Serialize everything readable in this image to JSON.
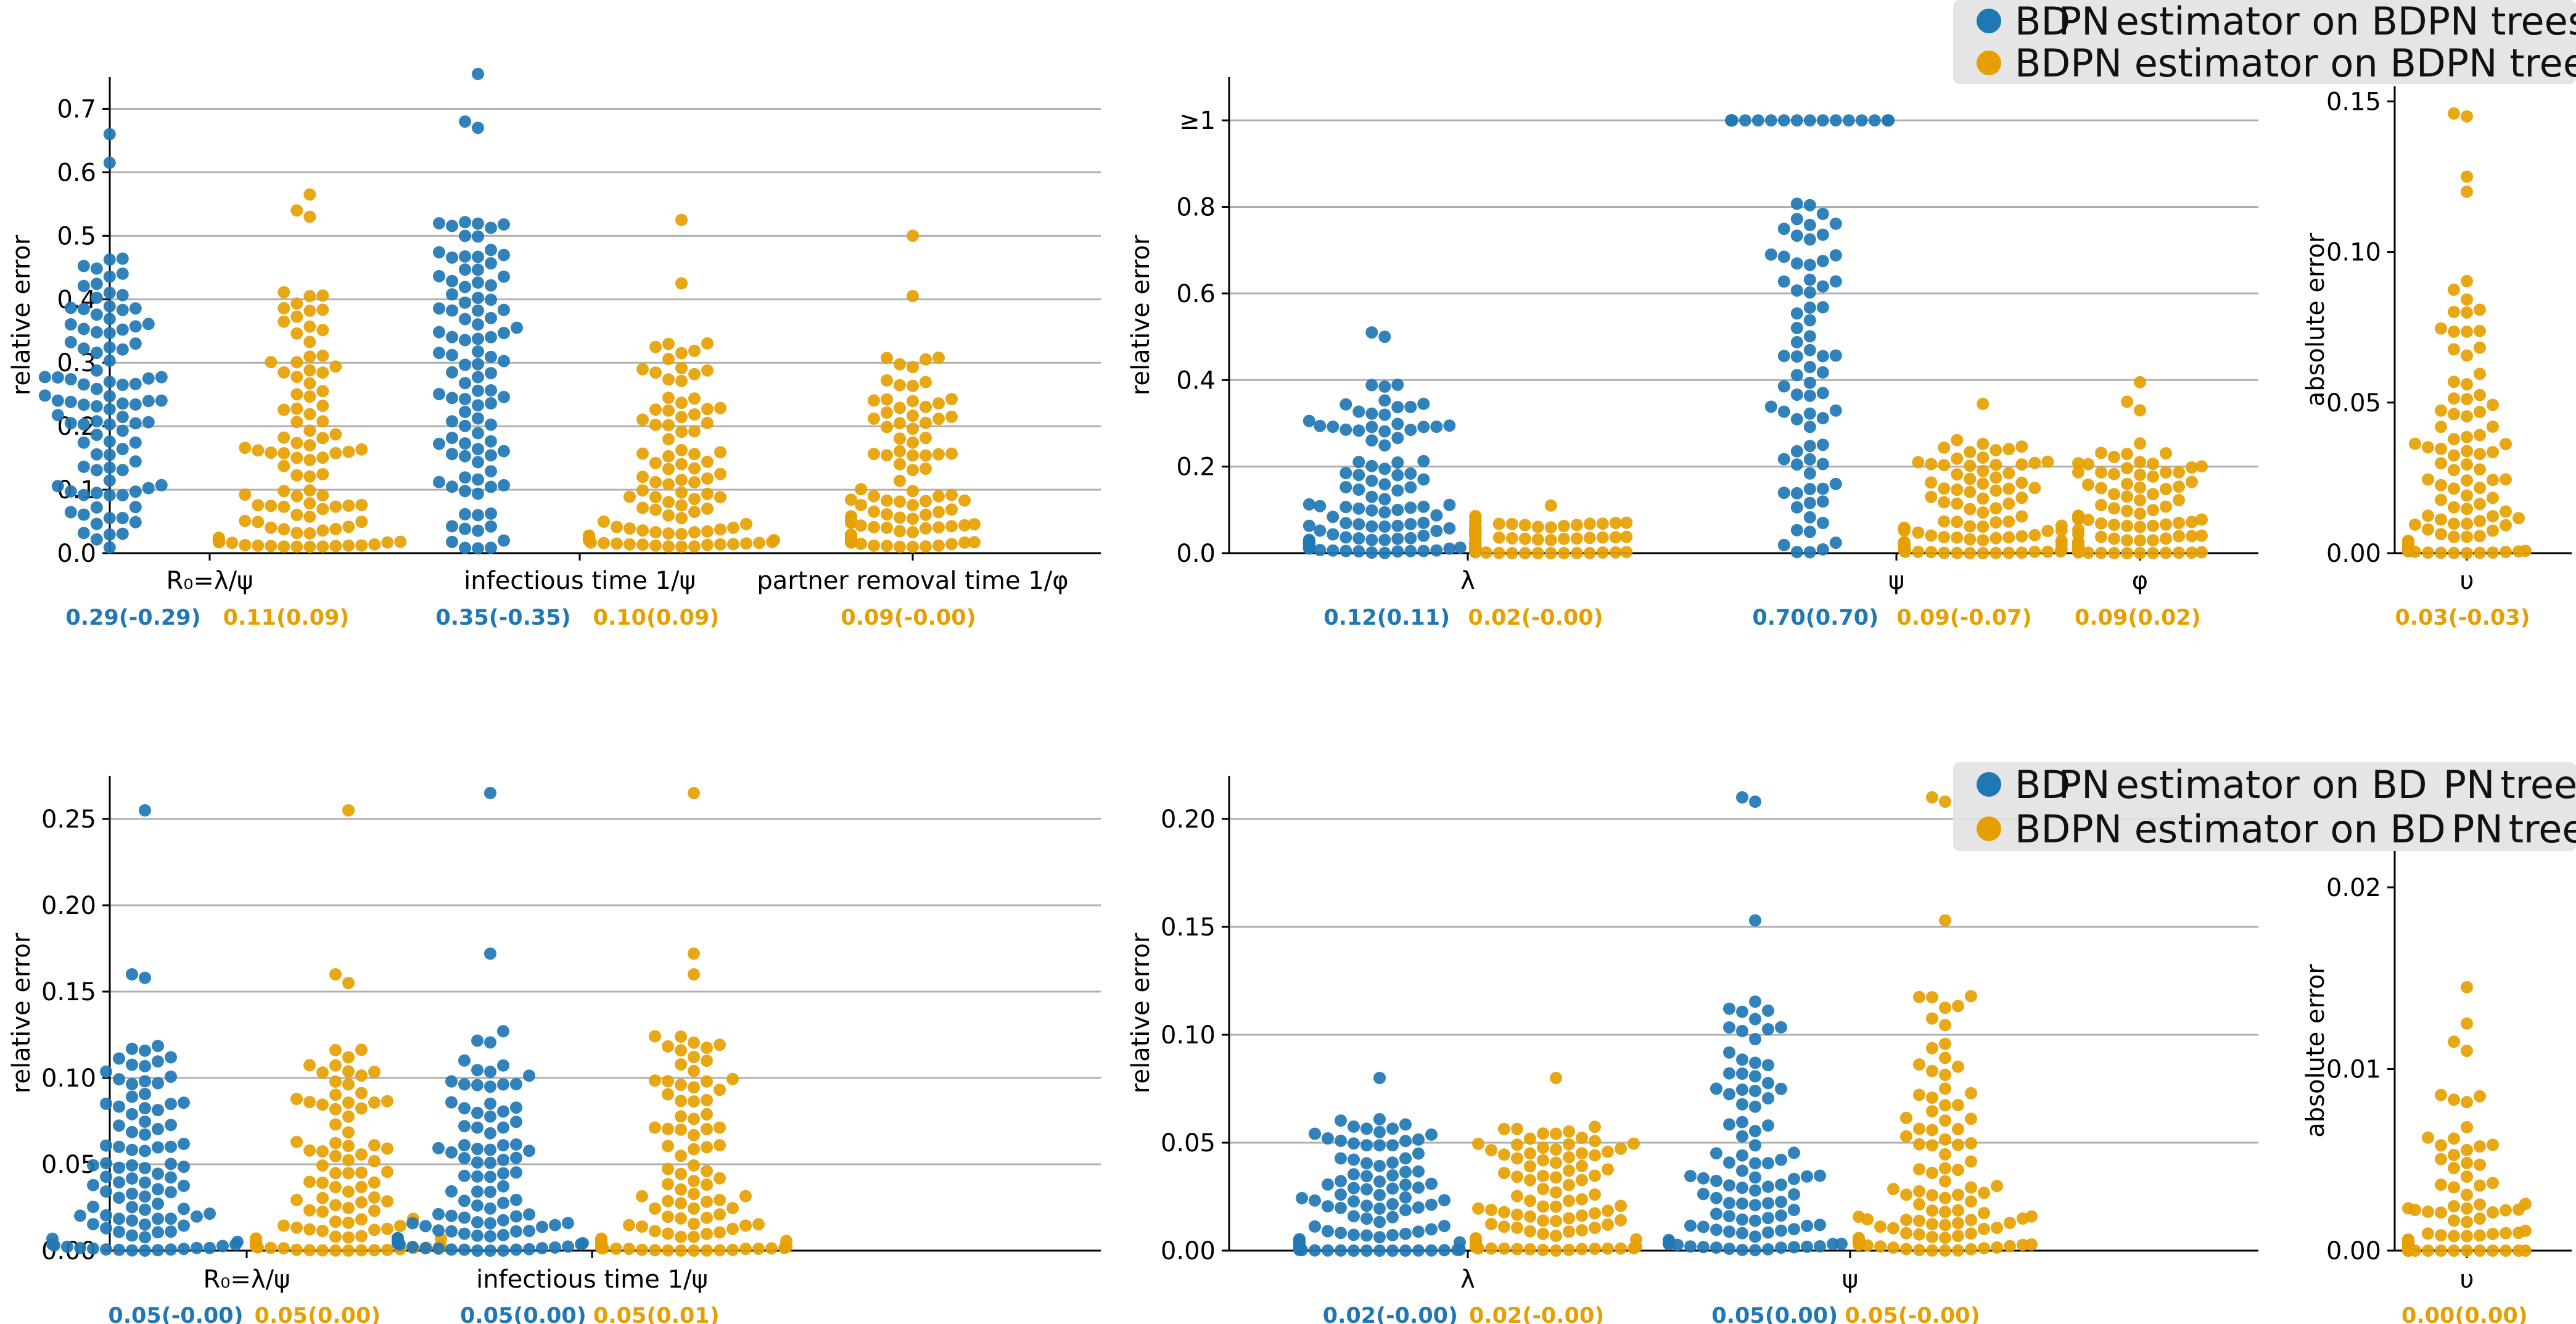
{
  "colors": {
    "bd": "#1f77b4",
    "bdpn": "#e69f00",
    "grid": "#b0b0b0",
    "axis": "#000000",
    "legend_bg": "#e2e2e2",
    "legend_mask": "#c9c9c9"
  },
  "legends": [
    {
      "entries": [
        {
          "key": "bd",
          "parts": [
            "BD",
            "PN",
            "estimator on BDPN trees"
          ],
          "mask": 1
        },
        {
          "key": "bdpn",
          "parts": [
            "BDPN estimator on BDPN trees"
          ],
          "mask": -1
        }
      ]
    },
    {
      "entries": [
        {
          "key": "bd",
          "parts": [
            "BD",
            "PN",
            "estimator on BD",
            "PN",
            "trees"
          ],
          "mask": 1
        },
        {
          "key": "bdpn",
          "parts": [
            "BDPN estimator on BD",
            "PN",
            "trees"
          ],
          "mask": 1
        }
      ]
    }
  ],
  "chart_data": [
    {
      "type": "scatter",
      "subtype": "swarm",
      "ylabel": "relative error",
      "ylim": [
        0,
        0.75
      ],
      "grid": true,
      "yticks": [
        "0.0",
        "0.1",
        "0.2",
        "0.3",
        "0.4",
        "0.5",
        "0.6",
        "0.7"
      ],
      "ytick_values": [
        0,
        0.1,
        0.2,
        0.3,
        0.4,
        0.5,
        0.6,
        0.7
      ],
      "categories": [
        "R₀=λ/ψ",
        "infectious time 1/ψ",
        "partner removal time 1/φ"
      ],
      "groups": [
        {
          "category": "R₀=λ/ψ",
          "series": [
            {
              "key": "bd",
              "stat": "0.29(-0.29)",
              "n": 100,
              "min": 0.0,
              "max": 0.66,
              "shape": "uniform",
              "outliers": [
                0.66,
                0.615
              ]
            },
            {
              "key": "bdpn",
              "stat": "0.11(0.09)",
              "n": 100,
              "min": 0.01,
              "max": 0.57,
              "shape": "decay",
              "outliers": [
                0.565,
                0.54,
                0.53
              ]
            }
          ]
        },
        {
          "category": "infectious time 1/ψ",
          "series": [
            {
              "key": "bd",
              "stat": "0.35(-0.35)",
              "n": 100,
              "min": 0.0,
              "max": 0.755,
              "shape": "uniform",
              "outliers": [
                0.755,
                0.68,
                0.67
              ]
            },
            {
              "key": "bdpn",
              "stat": "0.10(0.09)",
              "n": 100,
              "min": 0.01,
              "max": 0.53,
              "shape": "decay",
              "outliers": [
                0.525,
                0.425
              ]
            }
          ]
        },
        {
          "category": "partner removal time 1/φ",
          "series": [
            {
              "key": "bdpn",
              "stat": "0.09(-0.00)",
              "n": 100,
              "min": 0.01,
              "max": 0.5,
              "shape": "decay",
              "outliers": [
                0.5,
                0.405
              ]
            }
          ]
        }
      ]
    },
    {
      "type": "scatter",
      "subtype": "swarm",
      "ylabel": "relative error",
      "ylim": [
        0,
        1.1
      ],
      "grid": true,
      "yticks": [
        "0.0",
        "0.2",
        "0.4",
        "0.6",
        "0.8",
        "≥1"
      ],
      "ytick_values": [
        0,
        0.2,
        0.4,
        0.6,
        0.8,
        1.0
      ],
      "categories": [
        "λ",
        "ψ",
        "φ"
      ],
      "groups": [
        {
          "category": "λ",
          "series": [
            {
              "key": "bd",
              "stat": "0.12(0.11)",
              "n": 100,
              "min": 0.0,
              "max": 0.51,
              "shape": "decay",
              "outliers": [
                0.51,
                0.5
              ]
            },
            {
              "key": "bdpn",
              "stat": "0.02(-0.00)",
              "n": 100,
              "min": 0.0,
              "max": 0.11,
              "shape": "decay",
              "outliers": [
                0.11
              ]
            }
          ]
        },
        {
          "category": "ψ",
          "series": [
            {
              "key": "bd",
              "stat": "0.70(0.70)",
              "n": 100,
              "min": 0.0,
              "max": 1.0,
              "shape": "capped",
              "capped_count": 26
            },
            {
              "key": "bdpn",
              "stat": "0.09(-0.07)",
              "n": 100,
              "min": 0.0,
              "max": 0.35,
              "shape": "decay",
              "outliers": [
                0.345
              ]
            }
          ]
        },
        {
          "category": "φ",
          "series": [
            {
              "key": "bdpn",
              "stat": "0.09(0.02)",
              "n": 100,
              "min": 0.0,
              "max": 0.4,
              "shape": "decay",
              "outliers": [
                0.395,
                0.35,
                0.33
              ]
            }
          ]
        }
      ]
    },
    {
      "type": "scatter",
      "subtype": "swarm",
      "ylabel": "absolute error",
      "ylim": [
        0,
        0.155
      ],
      "grid": false,
      "yticks": [
        "0.00",
        "0.05",
        "0.10",
        "0.15"
      ],
      "ytick_values": [
        0,
        0.05,
        0.1,
        0.15
      ],
      "categories": [
        "υ"
      ],
      "groups": [
        {
          "category": "υ",
          "series": [
            {
              "key": "bdpn",
              "stat": "0.03(-0.03)",
              "n": 100,
              "min": 0.0,
              "max": 0.146,
              "shape": "decay",
              "outliers": [
                0.146,
                0.145,
                0.125,
                0.12
              ]
            }
          ]
        }
      ]
    },
    {
      "type": "scatter",
      "subtype": "swarm",
      "ylabel": "relative error",
      "ylim": [
        0,
        0.275
      ],
      "grid": true,
      "yticks": [
        "0.00",
        "0.05",
        "0.10",
        "0.15",
        "0.20",
        "0.25"
      ],
      "ytick_values": [
        0,
        0.05,
        0.1,
        0.15,
        0.2,
        0.25
      ],
      "categories": [
        "R₀=λ/ψ",
        "infectious time 1/ψ"
      ],
      "groups": [
        {
          "category": "R₀=λ/ψ",
          "series": [
            {
              "key": "bd",
              "stat": "0.05(-0.00)",
              "n": 100,
              "min": 0.0,
              "max": 0.255,
              "shape": "decay",
              "outliers": [
                0.255,
                0.16,
                0.158
              ]
            },
            {
              "key": "bdpn",
              "stat": "0.05(0.00)",
              "n": 100,
              "min": 0.0,
              "max": 0.255,
              "shape": "decay",
              "outliers": [
                0.255,
                0.16,
                0.155
              ]
            }
          ]
        },
        {
          "category": "infectious time 1/ψ",
          "series": [
            {
              "key": "bd",
              "stat": "0.05(0.00)",
              "n": 100,
              "min": 0.0,
              "max": 0.265,
              "shape": "decay",
              "outliers": [
                0.265,
                0.172
              ]
            },
            {
              "key": "bdpn",
              "stat": "0.05(0.01)",
              "n": 100,
              "min": 0.0,
              "max": 0.265,
              "shape": "decay",
              "outliers": [
                0.265,
                0.172,
                0.16
              ]
            }
          ]
        }
      ]
    },
    {
      "type": "scatter",
      "subtype": "swarm",
      "ylabel": "relative error",
      "ylim": [
        0,
        0.22
      ],
      "grid": true,
      "yticks": [
        "0.00",
        "0.05",
        "0.10",
        "0.15",
        "0.20"
      ],
      "ytick_values": [
        0,
        0.05,
        0.1,
        0.15,
        0.2
      ],
      "categories": [
        "λ",
        "ψ"
      ],
      "groups": [
        {
          "category": "λ",
          "series": [
            {
              "key": "bd",
              "stat": "0.02(-0.00)",
              "n": 100,
              "min": 0.0,
              "max": 0.08,
              "shape": "decay",
              "outliers": [
                0.08
              ]
            },
            {
              "key": "bdpn",
              "stat": "0.02(-0.00)",
              "n": 100,
              "min": 0.0,
              "max": 0.08,
              "shape": "decay",
              "outliers": [
                0.08
              ]
            }
          ]
        },
        {
          "category": "ψ",
          "series": [
            {
              "key": "bd",
              "stat": "0.05(0.00)",
              "n": 100,
              "min": 0.0,
              "max": 0.21,
              "shape": "decay",
              "outliers": [
                0.21,
                0.208,
                0.153
              ]
            },
            {
              "key": "bdpn",
              "stat": "0.05(-0.00)",
              "n": 100,
              "min": 0.0,
              "max": 0.21,
              "shape": "decay",
              "outliers": [
                0.21,
                0.208,
                0.153
              ]
            }
          ]
        }
      ]
    },
    {
      "type": "scatter",
      "subtype": "swarm",
      "ylabel": "absolute error",
      "ylim": [
        0,
        0.022
      ],
      "grid": false,
      "yticks": [
        "0.00",
        "0.01",
        "0.02"
      ],
      "ytick_values": [
        0,
        0.01,
        0.02
      ],
      "categories": [
        "υ"
      ],
      "groups": [
        {
          "category": "υ",
          "series": [
            {
              "key": "bdpn",
              "stat": "0.00(0.00)",
              "n": 100,
              "min": 0.0,
              "max": 0.0145,
              "shape": "spike",
              "outliers": [
                0.0145,
                0.0125,
                0.0115,
                0.011
              ]
            }
          ]
        }
      ]
    }
  ]
}
